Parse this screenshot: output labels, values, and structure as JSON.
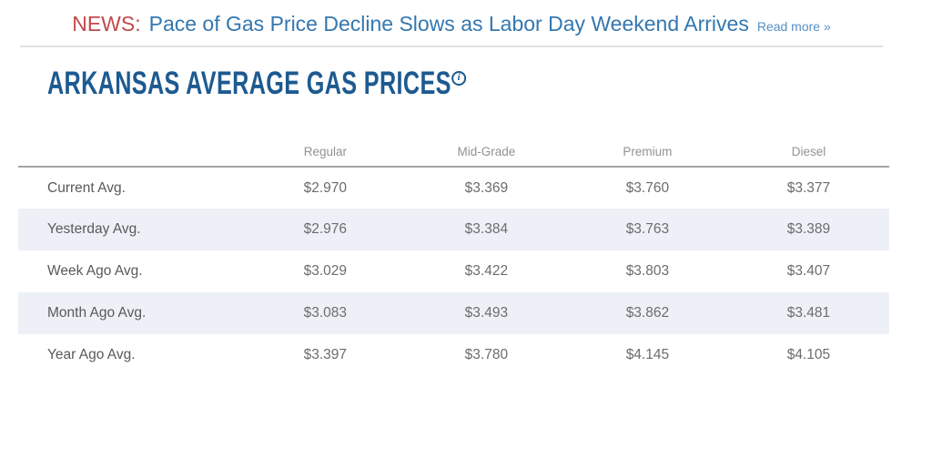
{
  "news": {
    "label": "NEWS:",
    "headline": "Pace of Gas Price Decline Slows as Labor Day Weekend Arrives",
    "read_more": "Read more »"
  },
  "page": {
    "title": "ARKANSAS AVERAGE GAS PRICES",
    "info_icon_glyph": "i"
  },
  "table": {
    "columns": [
      "Regular",
      "Mid-Grade",
      "Premium",
      "Diesel"
    ],
    "rows": [
      {
        "label": "Current Avg.",
        "values": [
          "$2.970",
          "$3.369",
          "$3.760",
          "$3.377"
        ]
      },
      {
        "label": "Yesterday Avg.",
        "values": [
          "$2.976",
          "$3.384",
          "$3.763",
          "$3.389"
        ]
      },
      {
        "label": "Week Ago Avg.",
        "values": [
          "$3.029",
          "$3.422",
          "$3.803",
          "$3.407"
        ]
      },
      {
        "label": "Month Ago Avg.",
        "values": [
          "$3.083",
          "$3.493",
          "$3.862",
          "$3.481"
        ]
      },
      {
        "label": "Year Ago Avg.",
        "values": [
          "$3.397",
          "$3.780",
          "$4.145",
          "$4.105"
        ]
      }
    ]
  },
  "colors": {
    "news_label": "#c3494b",
    "headline": "#3377b0",
    "read_more": "#5590c5",
    "title": "#1d5a90",
    "header_text": "#8f9295",
    "row_label": "#58595c",
    "value_text": "#6b6c6f",
    "stripe": "#edf1f7",
    "divider_light": "#e2e2e2",
    "divider_dark": "#a2a4a7"
  }
}
